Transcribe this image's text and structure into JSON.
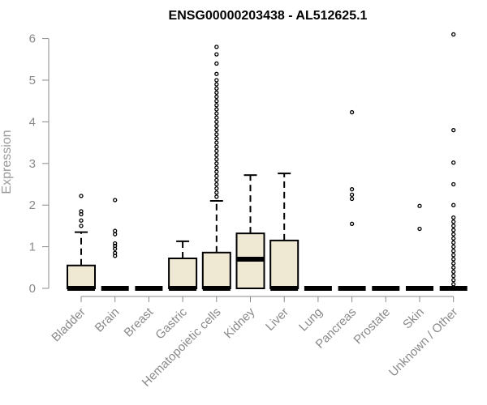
{
  "chart_data": {
    "type": "boxplot",
    "title": "ENSG00000203438 - AL512625.1",
    "ylabel": "Expression",
    "xlabel": "",
    "ylim": [
      0,
      6.2
    ],
    "yticks": [
      0,
      1,
      2,
      3,
      4,
      5,
      6
    ],
    "box_color": "#efe8d2",
    "categories": [
      "Bladder",
      "Brain",
      "Breast",
      "Gastric",
      "Hematopoietic cells",
      "Kidney",
      "Liver",
      "Lung",
      "Pancreas",
      "Prostate",
      "Skin",
      "Unknown / Other"
    ],
    "boxes": [
      {
        "name": "Bladder",
        "q1": 0,
        "median": 0,
        "q3": 0.55,
        "whisker_low": 0,
        "whisker_high": 1.35,
        "outliers": [
          1.5,
          1.63,
          1.78,
          1.85,
          2.22
        ]
      },
      {
        "name": "Brain",
        "q1": 0,
        "median": 0,
        "q3": 0,
        "whisker_low": 0,
        "whisker_high": 0,
        "outliers": [
          0.78,
          0.85,
          0.95,
          1.02,
          1.08,
          1.3,
          1.38,
          2.12
        ]
      },
      {
        "name": "Breast",
        "q1": 0,
        "median": 0,
        "q3": 0,
        "whisker_low": 0,
        "whisker_high": 0,
        "outliers": []
      },
      {
        "name": "Gastric",
        "q1": 0,
        "median": 0,
        "q3": 0.72,
        "whisker_low": 0,
        "whisker_high": 1.13,
        "outliers": []
      },
      {
        "name": "Hematopoietic cells",
        "q1": 0,
        "median": 0,
        "q3": 0.86,
        "whisker_low": 0,
        "whisker_high": 2.1,
        "outliers": [
          2.2,
          2.3,
          2.4,
          2.5,
          2.6,
          2.7,
          2.8,
          2.9,
          3.0,
          3.1,
          3.2,
          3.3,
          3.4,
          3.5,
          3.6,
          3.7,
          3.8,
          3.9,
          4.0,
          4.1,
          4.2,
          4.3,
          4.4,
          4.5,
          4.6,
          4.7,
          4.8,
          4.9,
          5.0,
          5.15,
          5.4,
          5.62,
          5.8
        ]
      },
      {
        "name": "Kidney",
        "q1": 0,
        "median": 0.7,
        "q3": 1.32,
        "whisker_low": 0,
        "whisker_high": 2.72,
        "outliers": []
      },
      {
        "name": "Liver",
        "q1": 0,
        "median": 0,
        "q3": 1.15,
        "whisker_low": 0,
        "whisker_high": 2.76,
        "outliers": []
      },
      {
        "name": "Lung",
        "q1": 0,
        "median": 0,
        "q3": 0,
        "whisker_low": 0,
        "whisker_high": 0,
        "outliers": []
      },
      {
        "name": "Pancreas",
        "q1": 0,
        "median": 0,
        "q3": 0,
        "whisker_low": 0,
        "whisker_high": 0,
        "outliers": [
          1.55,
          2.15,
          2.25,
          2.38,
          4.23
        ]
      },
      {
        "name": "Prostate",
        "q1": 0,
        "median": 0,
        "q3": 0,
        "whisker_low": 0,
        "whisker_high": 0,
        "outliers": []
      },
      {
        "name": "Skin",
        "q1": 0,
        "median": 0,
        "q3": 0,
        "whisker_low": 0,
        "whisker_high": 0,
        "outliers": [
          1.43,
          1.98
        ]
      },
      {
        "name": "Unknown / Other",
        "q1": 0,
        "median": 0,
        "q3": 0,
        "whisker_low": 0,
        "whisker_high": 0,
        "outliers": [
          0.1,
          0.2,
          0.3,
          0.4,
          0.5,
          0.6,
          0.7,
          0.8,
          0.9,
          1.0,
          1.1,
          1.2,
          1.3,
          1.4,
          1.5,
          1.6,
          1.7,
          2.0,
          2.5,
          3.02,
          3.8,
          6.1
        ]
      }
    ]
  }
}
